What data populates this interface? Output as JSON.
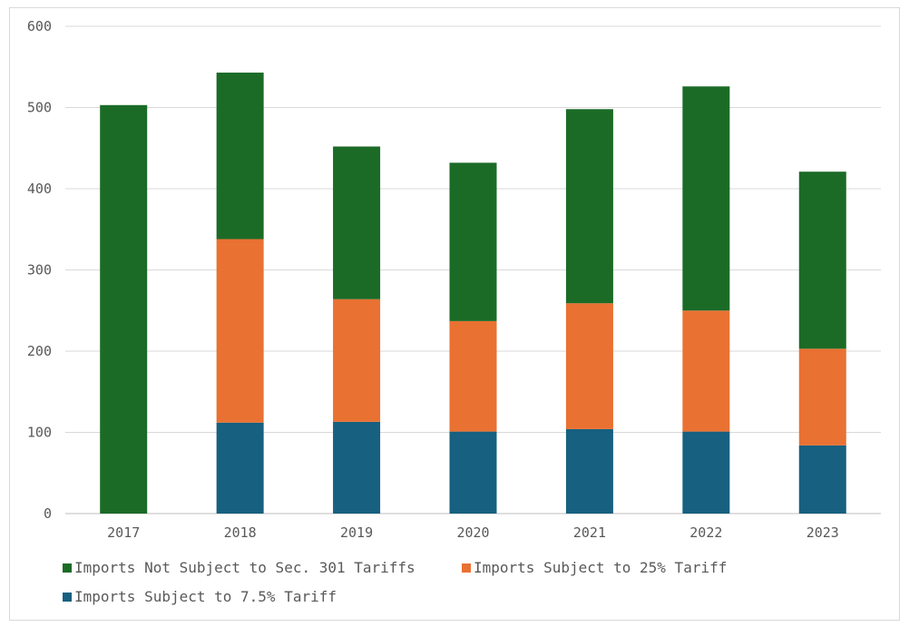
{
  "chart_data": {
    "type": "bar",
    "stacked": true,
    "title": "",
    "xlabel": "",
    "ylabel": "",
    "ylim": [
      0,
      600
    ],
    "yticks": [
      0,
      100,
      200,
      300,
      400,
      500,
      600
    ],
    "grid": true,
    "legend_position": "bottom",
    "categories": [
      "2017",
      "2018",
      "2019",
      "2020",
      "2021",
      "2022",
      "2023"
    ],
    "series": [
      {
        "name": "Imports Subject to 7.5% Tariff",
        "color": "#17607f",
        "values": [
          0,
          112,
          113,
          101,
          104,
          101,
          84
        ]
      },
      {
        "name": "Imports Subject to 25% Tariff",
        "color": "#e97132",
        "values": [
          0,
          226,
          151,
          136,
          155,
          149,
          119
        ]
      },
      {
        "name": "Imports Not Subject to Sec. 301 Tariffs",
        "color": "#1b6b27",
        "values": [
          503,
          205,
          188,
          195,
          239,
          276,
          218
        ]
      }
    ],
    "legend_order": [
      2,
      1,
      0
    ]
  }
}
